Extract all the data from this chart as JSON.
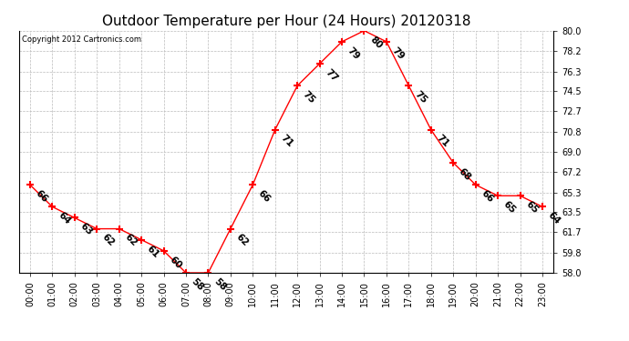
{
  "title": "Outdoor Temperature per Hour (24 Hours) 20120318",
  "copyright": "Copyright 2012 Cartronics.com",
  "hours": [
    "00:00",
    "01:00",
    "02:00",
    "03:00",
    "04:00",
    "05:00",
    "06:00",
    "07:00",
    "08:00",
    "09:00",
    "10:00",
    "11:00",
    "12:00",
    "13:00",
    "14:00",
    "15:00",
    "16:00",
    "17:00",
    "18:00",
    "19:00",
    "20:00",
    "21:00",
    "22:00",
    "23:00"
  ],
  "temps": [
    66,
    64,
    63,
    62,
    62,
    61,
    60,
    58,
    58,
    62,
    66,
    71,
    75,
    77,
    79,
    80,
    79,
    75,
    71,
    68,
    66,
    65,
    65,
    64
  ],
  "ylim": [
    58.0,
    80.0
  ],
  "yticks": [
    58.0,
    59.8,
    61.7,
    63.5,
    65.3,
    67.2,
    69.0,
    70.8,
    72.7,
    74.5,
    76.3,
    78.2,
    80.0
  ],
  "line_color": "red",
  "marker": "+",
  "grid_color": "#bbbbbb",
  "bg_color": "#ffffff",
  "title_fontsize": 11,
  "label_fontsize": 7,
  "annotation_fontsize": 7.5,
  "annotation_rotation": -45
}
